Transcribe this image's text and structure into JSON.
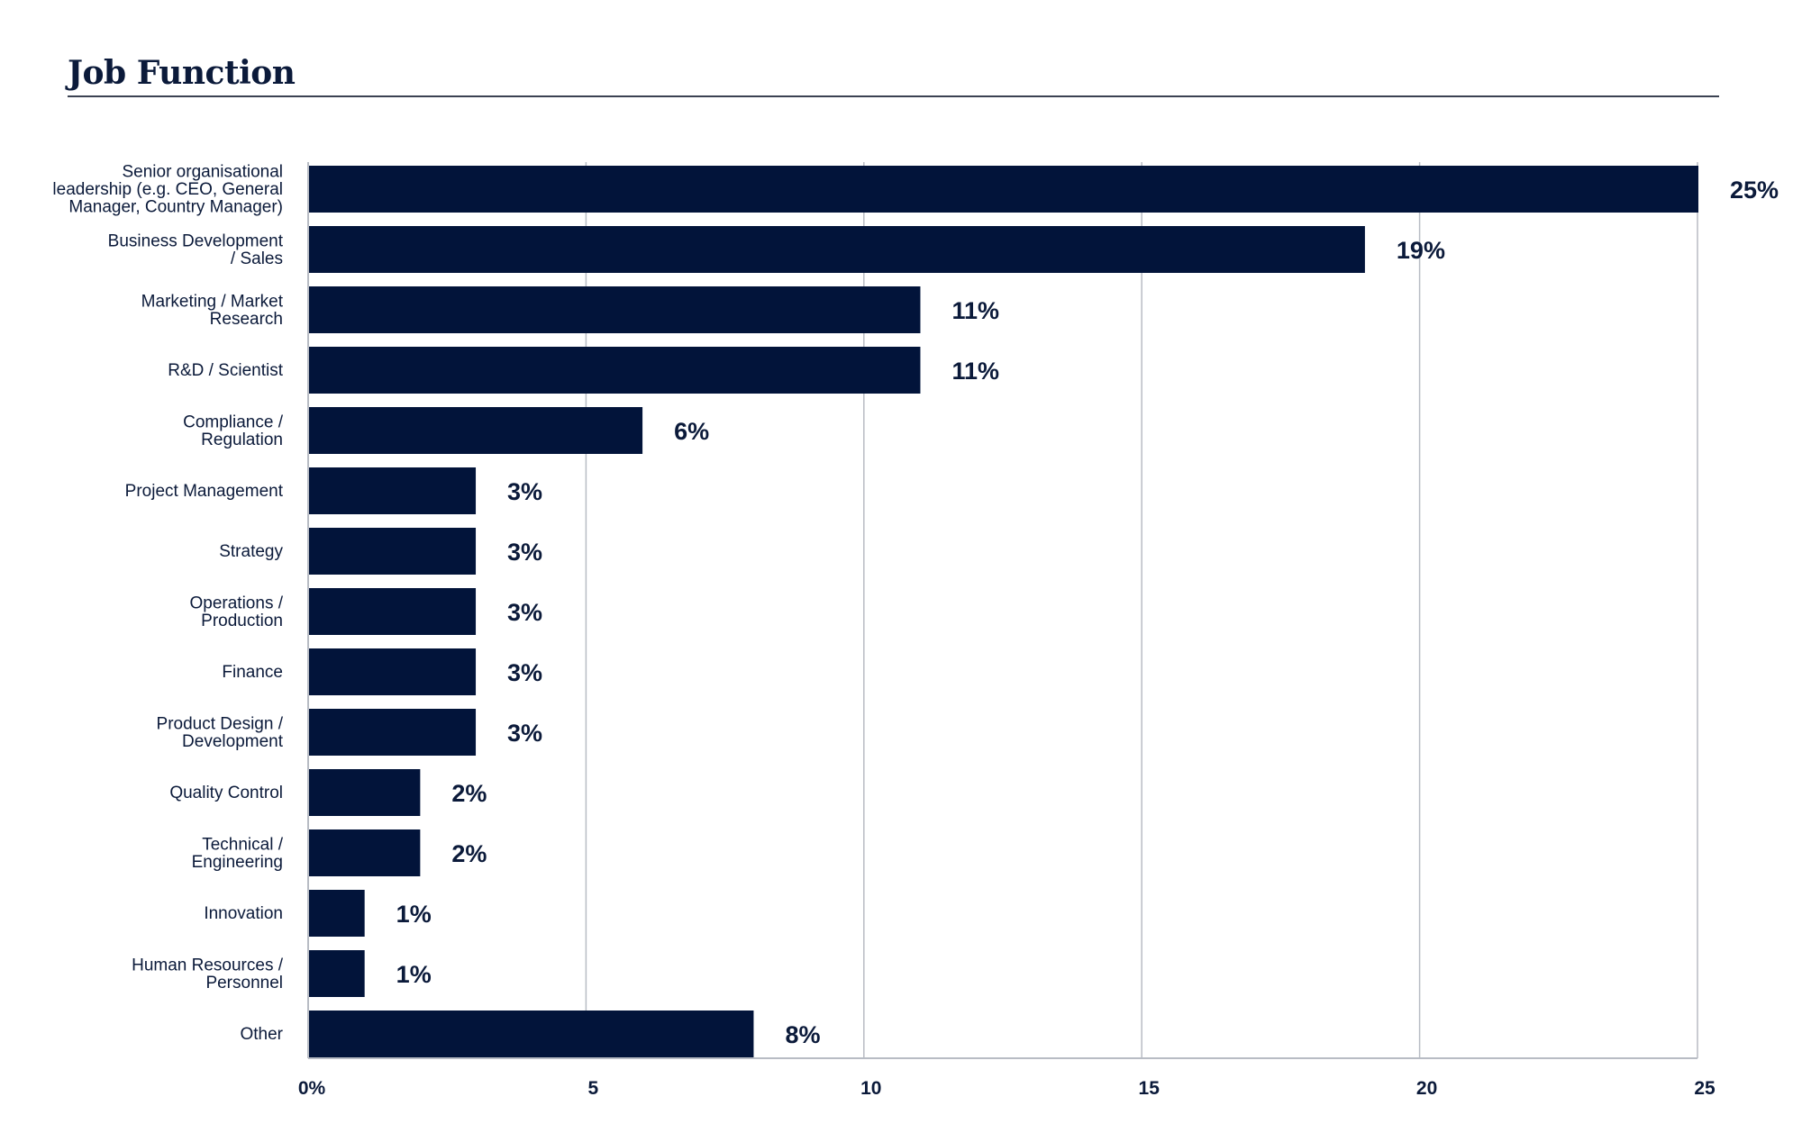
{
  "page_title": "Job Function",
  "chart_data": {
    "type": "bar",
    "orientation": "horizontal",
    "title": "Job Function",
    "xlabel": "",
    "ylabel": "",
    "xlim": [
      0,
      25
    ],
    "xticks": [
      "0%",
      "5",
      "10",
      "15",
      "20",
      "25"
    ],
    "grid": true,
    "bar_color": "#02143a",
    "categories": [
      "Senior organisational leadership (e.g. CEO, General Manager, Country Manager)",
      "Business Development / Sales",
      "Marketing / Market Research",
      "R&D / Scientist",
      "Compliance / Regulation",
      "Project Management",
      "Strategy",
      "Operations / Production",
      "Finance",
      "Product Design / Development",
      "Quality Control",
      "Technical / Engineering",
      "Innovation",
      "Human Resources / Personnel",
      "Other"
    ],
    "category_lines": [
      [
        "Senior organisational",
        "leadership (e.g. CEO, General",
        "Manager, Country Manager)"
      ],
      [
        "Business Development",
        "/ Sales"
      ],
      [
        "Marketing / Market",
        "Research"
      ],
      [
        "R&D / Scientist"
      ],
      [
        "Compliance /",
        "Regulation"
      ],
      [
        "Project Management"
      ],
      [
        "Strategy"
      ],
      [
        "Operations /",
        "Production"
      ],
      [
        "Finance"
      ],
      [
        "Product Design /",
        "Development"
      ],
      [
        "Quality Control"
      ],
      [
        "Technical /",
        "Engineering"
      ],
      [
        "Innovation"
      ],
      [
        "Human Resources /",
        "Personnel"
      ],
      [
        "Other"
      ]
    ],
    "values": [
      25,
      19,
      11,
      11,
      6,
      3,
      3,
      3,
      3,
      3,
      2,
      2,
      1,
      1,
      8
    ],
    "value_labels": [
      "25%",
      "19%",
      "11%",
      "11%",
      "6%",
      "3%",
      "3%",
      "3%",
      "3%",
      "3%",
      "2%",
      "2%",
      "1%",
      "1%",
      "8%"
    ]
  }
}
